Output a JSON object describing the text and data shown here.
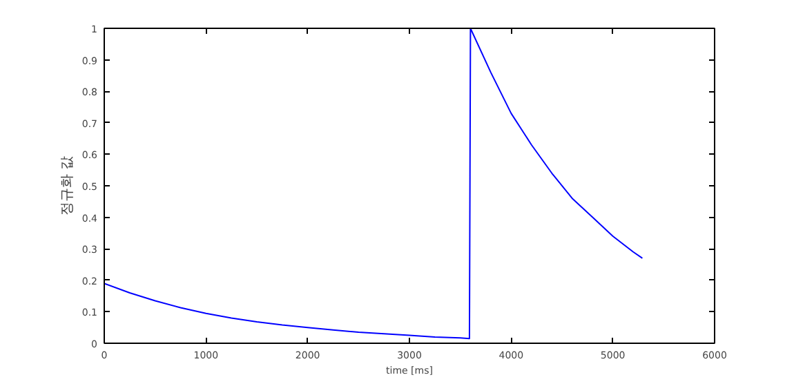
{
  "chart_data": {
    "type": "line",
    "xlabel": "time [ms]",
    "ylabel": "정규화 값",
    "x": [
      0,
      250,
      500,
      750,
      1000,
      1250,
      1500,
      1750,
      2000,
      2250,
      2500,
      2750,
      3000,
      3250,
      3500,
      3590,
      3600,
      3800,
      4000,
      4200,
      4400,
      4600,
      4800,
      5000,
      5200,
      5290
    ],
    "series": [
      {
        "color": "#0000ff",
        "values": [
          0.19,
          0.16,
          0.135,
          0.113,
          0.095,
          0.08,
          0.068,
          0.058,
          0.05,
          0.042,
          0.035,
          0.03,
          0.025,
          0.02,
          0.017,
          0.015,
          1.0,
          0.86,
          0.73,
          0.63,
          0.54,
          0.46,
          0.4,
          0.34,
          0.29,
          0.27
        ]
      }
    ],
    "xlim": [
      0,
      6000
    ],
    "ylim": [
      0,
      1
    ],
    "xticks": [
      0,
      1000,
      2000,
      3000,
      4000,
      5000,
      6000
    ],
    "yticks": [
      0,
      0.1,
      0.2,
      0.3,
      0.4,
      0.5,
      0.6,
      0.7,
      0.8,
      0.9,
      1
    ],
    "grid": false,
    "marker": "none",
    "line_style": "solid"
  }
}
